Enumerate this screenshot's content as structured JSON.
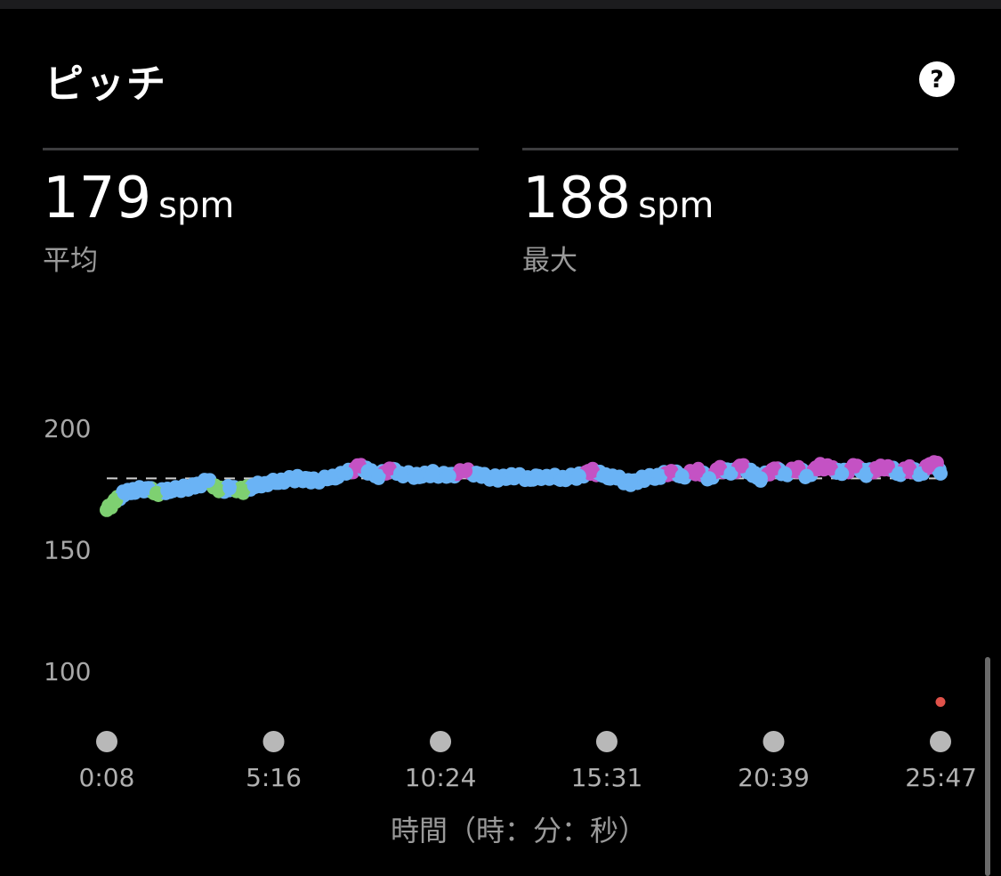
{
  "title": "ピッチ",
  "help_icon": "question-circle-icon",
  "stats": {
    "average": {
      "value": "179",
      "unit": "spm",
      "label": "平均"
    },
    "max": {
      "value": "188",
      "unit": "spm",
      "label": "最大"
    }
  },
  "colors": {
    "background": "#000000",
    "zone_green": "#7ed071",
    "zone_blue": "#6ab3f5",
    "zone_purple": "#c452c4",
    "zone_red": "#e0524a",
    "marker_gray": "#b8b8b8",
    "average_line": "#cfcfcf"
  },
  "chart_data": {
    "type": "scatter",
    "xlabel": "時間（時：分：秒）",
    "ylabel": "",
    "x_ticks": [
      "0:08",
      "5:16",
      "10:24",
      "15:31",
      "20:39",
      "25:47"
    ],
    "x_tick_seconds": [
      8,
      316,
      624,
      931,
      1239,
      1547
    ],
    "xlim_seconds": [
      8,
      1547
    ],
    "y_ticks": [
      200,
      150,
      100
    ],
    "ylim": [
      80,
      200
    ],
    "average_line": 179,
    "series_points": [
      {
        "t": 8,
        "cad": 166,
        "zone": "green"
      },
      {
        "t": 25,
        "cad": 170,
        "zone": "green"
      },
      {
        "t": 40,
        "cad": 173,
        "zone": "blue"
      },
      {
        "t": 60,
        "cad": 174,
        "zone": "blue"
      },
      {
        "t": 85,
        "cad": 175,
        "zone": "blue"
      },
      {
        "t": 100,
        "cad": 173,
        "zone": "green"
      },
      {
        "t": 120,
        "cad": 174,
        "zone": "blue"
      },
      {
        "t": 150,
        "cad": 175,
        "zone": "blue"
      },
      {
        "t": 175,
        "cad": 176,
        "zone": "blue"
      },
      {
        "t": 195,
        "cad": 178,
        "zone": "blue"
      },
      {
        "t": 215,
        "cad": 174,
        "zone": "green"
      },
      {
        "t": 235,
        "cad": 175,
        "zone": "blue"
      },
      {
        "t": 260,
        "cad": 174,
        "zone": "green"
      },
      {
        "t": 280,
        "cad": 176,
        "zone": "blue"
      },
      {
        "t": 300,
        "cad": 177,
        "zone": "blue"
      },
      {
        "t": 330,
        "cad": 178,
        "zone": "blue"
      },
      {
        "t": 360,
        "cad": 179,
        "zone": "blue"
      },
      {
        "t": 390,
        "cad": 178,
        "zone": "blue"
      },
      {
        "t": 420,
        "cad": 179,
        "zone": "blue"
      },
      {
        "t": 450,
        "cad": 181,
        "zone": "blue"
      },
      {
        "t": 475,
        "cad": 184,
        "zone": "purple"
      },
      {
        "t": 490,
        "cad": 182,
        "zone": "blue"
      },
      {
        "t": 510,
        "cad": 180,
        "zone": "blue"
      },
      {
        "t": 530,
        "cad": 183,
        "zone": "purple"
      },
      {
        "t": 550,
        "cad": 181,
        "zone": "blue"
      },
      {
        "t": 580,
        "cad": 180,
        "zone": "blue"
      },
      {
        "t": 610,
        "cad": 181,
        "zone": "blue"
      },
      {
        "t": 640,
        "cad": 180,
        "zone": "blue"
      },
      {
        "t": 670,
        "cad": 182,
        "zone": "purple"
      },
      {
        "t": 700,
        "cad": 180,
        "zone": "blue"
      },
      {
        "t": 730,
        "cad": 179,
        "zone": "blue"
      },
      {
        "t": 760,
        "cad": 180,
        "zone": "blue"
      },
      {
        "t": 790,
        "cad": 179,
        "zone": "blue"
      },
      {
        "t": 820,
        "cad": 180,
        "zone": "blue"
      },
      {
        "t": 850,
        "cad": 179,
        "zone": "blue"
      },
      {
        "t": 880,
        "cad": 180,
        "zone": "blue"
      },
      {
        "t": 905,
        "cad": 182,
        "zone": "purple"
      },
      {
        "t": 925,
        "cad": 180,
        "zone": "blue"
      },
      {
        "t": 950,
        "cad": 179,
        "zone": "blue"
      },
      {
        "t": 975,
        "cad": 177,
        "zone": "blue"
      },
      {
        "t": 1000,
        "cad": 179,
        "zone": "blue"
      },
      {
        "t": 1030,
        "cad": 180,
        "zone": "blue"
      },
      {
        "t": 1050,
        "cad": 182,
        "zone": "purple"
      },
      {
        "t": 1070,
        "cad": 180,
        "zone": "blue"
      },
      {
        "t": 1100,
        "cad": 182,
        "zone": "purple"
      },
      {
        "t": 1120,
        "cad": 179,
        "zone": "blue"
      },
      {
        "t": 1140,
        "cad": 183,
        "zone": "purple"
      },
      {
        "t": 1160,
        "cad": 181,
        "zone": "blue"
      },
      {
        "t": 1180,
        "cad": 184,
        "zone": "purple"
      },
      {
        "t": 1200,
        "cad": 181,
        "zone": "blue"
      },
      {
        "t": 1215,
        "cad": 179,
        "zone": "blue"
      },
      {
        "t": 1240,
        "cad": 183,
        "zone": "purple"
      },
      {
        "t": 1260,
        "cad": 181,
        "zone": "blue"
      },
      {
        "t": 1285,
        "cad": 183,
        "zone": "purple"
      },
      {
        "t": 1300,
        "cad": 180,
        "zone": "blue"
      },
      {
        "t": 1325,
        "cad": 184,
        "zone": "purple"
      },
      {
        "t": 1345,
        "cad": 183,
        "zone": "purple"
      },
      {
        "t": 1365,
        "cad": 181,
        "zone": "blue"
      },
      {
        "t": 1390,
        "cad": 184,
        "zone": "purple"
      },
      {
        "t": 1410,
        "cad": 181,
        "zone": "blue"
      },
      {
        "t": 1430,
        "cad": 183,
        "zone": "purple"
      },
      {
        "t": 1450,
        "cad": 184,
        "zone": "purple"
      },
      {
        "t": 1470,
        "cad": 181,
        "zone": "blue"
      },
      {
        "t": 1490,
        "cad": 183,
        "zone": "purple"
      },
      {
        "t": 1510,
        "cad": 181,
        "zone": "blue"
      },
      {
        "t": 1525,
        "cad": 184,
        "zone": "purple"
      },
      {
        "t": 1540,
        "cad": 185,
        "zone": "purple"
      },
      {
        "t": 1547,
        "cad": 181,
        "zone": "blue"
      },
      {
        "t": 1547,
        "cad": 87,
        "zone": "red"
      }
    ]
  }
}
